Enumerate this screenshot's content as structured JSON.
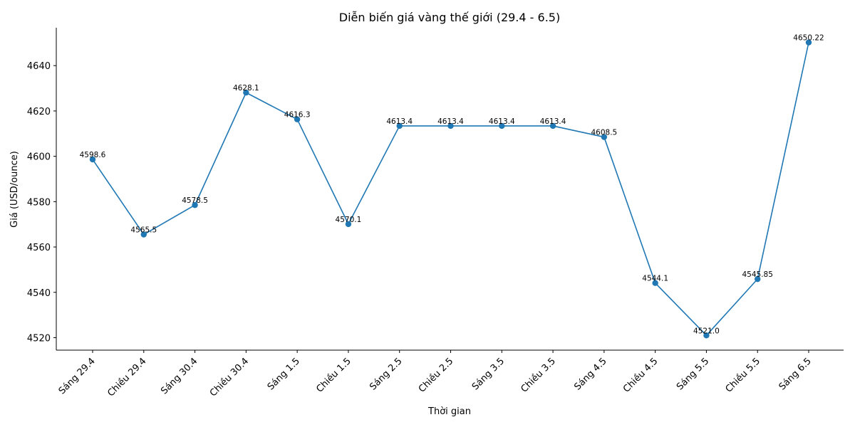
{
  "chart_data": {
    "type": "line",
    "title": "Diễn biến giá vàng thế giới (29.4 - 6.5)",
    "xlabel": "Thời gian",
    "ylabel": "Giá (USD/ounce)",
    "categories": [
      "Sáng 29.4",
      "Chiều 29.4",
      "Sáng 30.4",
      "Chiều 30.4",
      "Sáng 1.5",
      "Chiều 1.5",
      "Sáng 2.5",
      "Chiều 2.5",
      "Sáng 3.5",
      "Chiều 3.5",
      "Sáng 4.5",
      "Chiều 4.5",
      "Sáng 5.5",
      "Chiều 5.5",
      "Sáng 6.5"
    ],
    "values": [
      4598.6,
      4565.5,
      4578.5,
      4628.1,
      4616.3,
      4570.1,
      4613.4,
      4613.4,
      4613.4,
      4613.4,
      4608.5,
      4544.1,
      4521.0,
      4545.85,
      4650.22
    ],
    "data_labels": [
      "4598.6",
      "4565.5",
      "4578.5",
      "4628.1",
      "4616.3",
      "4570.1",
      "4613.4",
      "4613.4",
      "4613.4",
      "4613.4",
      "4608.5",
      "4544.1",
      "4521.0",
      "4545.85",
      "4650.22"
    ],
    "yticks": [
      4520,
      4540,
      4560,
      4580,
      4600,
      4620,
      4640
    ],
    "ylim": [
      4514.5,
      4656.7
    ],
    "grid": false,
    "legend": "none",
    "color": "#1f77b4"
  }
}
